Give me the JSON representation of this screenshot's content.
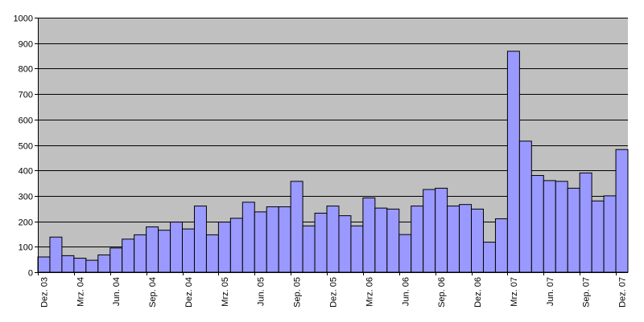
{
  "chart_data": {
    "type": "bar",
    "categories": [
      "Dez. 03",
      "Jan. 04",
      "Feb. 04",
      "Mrz. 04",
      "Apr. 04",
      "Mai. 04",
      "Jun. 04",
      "Jul. 04",
      "Aug. 04",
      "Sep. 04",
      "Okt. 04",
      "Nov. 04",
      "Dez. 04",
      "Jan. 05",
      "Feb. 05",
      "Mrz. 05",
      "Apr. 05",
      "Mai. 05",
      "Jun. 05",
      "Jul. 05",
      "Aug. 05",
      "Sep. 05",
      "Okt. 05",
      "Nov. 05",
      "Dez. 05",
      "Jan. 06",
      "Feb. 06",
      "Mrz. 06",
      "Apr. 06",
      "Mai. 06",
      "Jun. 06",
      "Jul. 06",
      "Aug. 06",
      "Sep. 06",
      "Okt. 06",
      "Nov. 06",
      "Dez. 06",
      "Jan. 07",
      "Feb. 07",
      "Mrz. 07",
      "Apr. 07",
      "Mai. 07",
      "Jun. 07",
      "Jul. 07",
      "Aug. 07",
      "Sep. 07",
      "Okt. 07",
      "Nov. 07",
      "Dez. 07"
    ],
    "xtick_labels": [
      "Dez. 03",
      "Mrz. 04",
      "Jun. 04",
      "Sep. 04",
      "Dez. 04",
      "Mrz. 05",
      "Jun. 05",
      "Sep. 05",
      "Dez. 05",
      "Mrz. 06",
      "Jun. 06",
      "Sep. 06",
      "Dez. 06",
      "Mrz. 07",
      "Jun. 07",
      "Sep. 07",
      "Dez. 07"
    ],
    "values": [
      60,
      138,
      65,
      55,
      47,
      68,
      95,
      130,
      147,
      178,
      165,
      197,
      170,
      260,
      147,
      197,
      212,
      275,
      237,
      257,
      257,
      357,
      182,
      232,
      260,
      222,
      182,
      292,
      252,
      248,
      148,
      260,
      325,
      330,
      260,
      266,
      248,
      118,
      210,
      868,
      515,
      380,
      360,
      357,
      330,
      390,
      280,
      300,
      482
    ],
    "ylim": [
      0,
      1000
    ],
    "yticks": [
      0,
      100,
      200,
      300,
      400,
      500,
      600,
      700,
      800,
      900,
      1000
    ],
    "grid": true,
    "legend": "none",
    "title": "",
    "xlabel": "",
    "ylabel": "",
    "colors": {
      "bar_fill": "#9999ff",
      "bar_stroke": "#000000",
      "plot_bg": "#c0c0c0",
      "grid": "#000000"
    }
  }
}
